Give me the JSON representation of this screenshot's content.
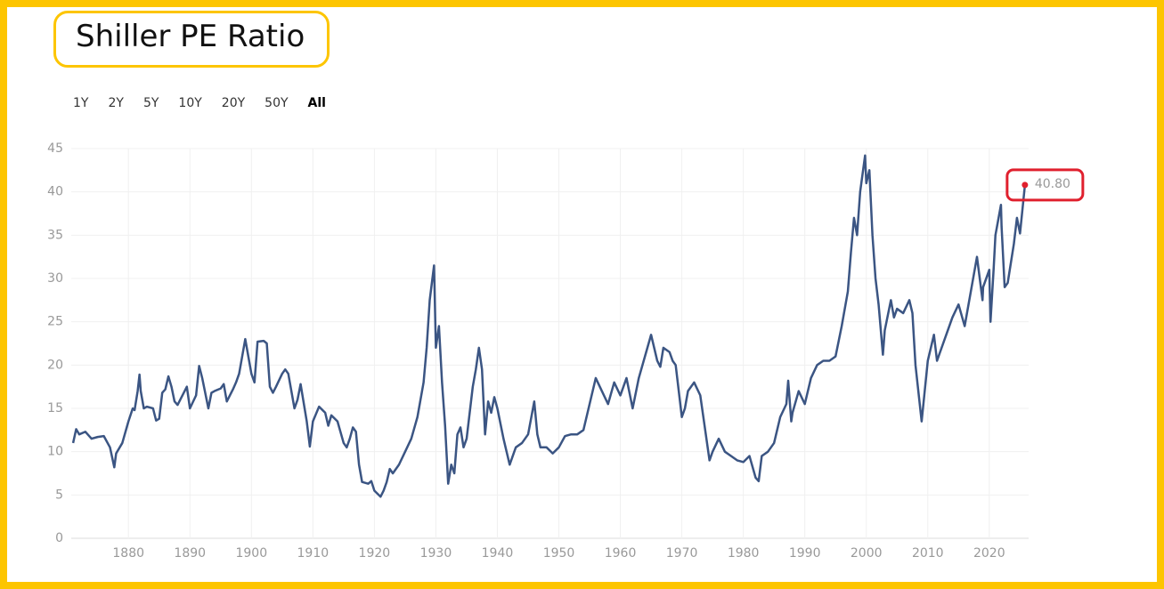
{
  "chart_data": {
    "type": "line",
    "title": "Shiller PE Ratio",
    "range_buttons": [
      "1Y",
      "2Y",
      "5Y",
      "10Y",
      "20Y",
      "50Y",
      "All"
    ],
    "active_range": "All",
    "x": [
      1871,
      1871.5,
      1872,
      1873,
      1874,
      1875,
      1876,
      1877,
      1877.7,
      1878,
      1879,
      1880,
      1880.7,
      1881,
      1881.5,
      1881.8,
      1882,
      1882.5,
      1883,
      1884,
      1884.5,
      1885,
      1885.5,
      1886,
      1886.5,
      1887,
      1887.5,
      1888,
      1889,
      1889.5,
      1890,
      1891,
      1891.5,
      1892,
      1893,
      1893.5,
      1894,
      1895,
      1895.5,
      1896,
      1897,
      1897.5,
      1898,
      1899,
      1899.5,
      1900,
      1900.5,
      1901,
      1902,
      1902.5,
      1903,
      1903.5,
      1904,
      1905,
      1905.5,
      1906,
      1907,
      1907.5,
      1908,
      1909,
      1909.5,
      1910,
      1911,
      1912,
      1912.5,
      1913,
      1914,
      1915,
      1915.5,
      1916,
      1916.5,
      1917,
      1917.5,
      1918,
      1919,
      1919.5,
      1920,
      1921,
      1921.5,
      1922,
      1922.5,
      1923,
      1924,
      1925,
      1926,
      1927,
      1928,
      1928.5,
      1929,
      1929.7,
      1930,
      1930.5,
      1931,
      1931.5,
      1932,
      1932.5,
      1933,
      1933.5,
      1934,
      1934.5,
      1935,
      1936,
      1936.5,
      1937,
      1937.5,
      1938,
      1938.5,
      1939,
      1939.5,
      1940,
      1941,
      1941.5,
      1942,
      1943,
      1944,
      1945,
      1946,
      1946.5,
      1947,
      1948,
      1949,
      1950,
      1951,
      1952,
      1953,
      1954,
      1955,
      1956,
      1957,
      1958,
      1959,
      1960,
      1961,
      1962,
      1963,
      1964,
      1965,
      1966,
      1966.5,
      1967,
      1968,
      1968.5,
      1969,
      1970,
      1970.5,
      1971,
      1972,
      1973,
      1974,
      1974.5,
      1975,
      1976,
      1977,
      1978,
      1979,
      1980,
      1981,
      1982,
      1982.5,
      1983,
      1984,
      1985,
      1986,
      1987,
      1987.3,
      1987.8,
      1988,
      1989,
      1990,
      1991,
      1992,
      1993,
      1994,
      1995,
      1996,
      1997,
      1997.5,
      1998,
      1998.5,
      1999,
      1999.8,
      2000,
      2000.5,
      2001,
      2001.5,
      2002,
      2002.7,
      2003,
      2004,
      2004.5,
      2005,
      2006,
      2007,
      2007.5,
      2008,
      2009,
      2009.5,
      2010,
      2011,
      2011.5,
      2012,
      2013,
      2014,
      2015,
      2016,
      2017,
      2018,
      2018.9,
      2019,
      2020,
      2020.2,
      2020.7,
      2021,
      2021.9,
      2022,
      2022.5,
      2023,
      2024,
      2024.5,
      2025,
      2025.8
    ],
    "values": [
      11.0,
      12.6,
      12.0,
      12.3,
      11.5,
      11.7,
      11.8,
      10.5,
      8.2,
      9.8,
      11.0,
      13.5,
      15.0,
      14.8,
      17.0,
      18.9,
      17.0,
      15.0,
      15.2,
      15.0,
      13.6,
      13.8,
      16.8,
      17.2,
      18.7,
      17.5,
      15.8,
      15.4,
      16.8,
      17.5,
      15.0,
      16.5,
      19.9,
      18.5,
      15.0,
      16.8,
      17.0,
      17.3,
      17.8,
      15.8,
      17.2,
      18.0,
      19.0,
      23.0,
      21.0,
      19.0,
      18.0,
      22.7,
      22.8,
      22.5,
      17.5,
      16.8,
      17.5,
      19.0,
      19.5,
      19.0,
      15.0,
      16.0,
      17.8,
      13.5,
      10.6,
      13.5,
      15.2,
      14.5,
      13.0,
      14.2,
      13.5,
      11.0,
      10.5,
      11.5,
      12.8,
      12.3,
      8.5,
      6.5,
      6.3,
      6.6,
      5.5,
      4.8,
      5.5,
      6.5,
      8.0,
      7.5,
      8.5,
      10.0,
      11.5,
      14.0,
      18.0,
      22.0,
      27.5,
      31.5,
      22.0,
      24.5,
      18.0,
      13.0,
      6.3,
      8.5,
      7.5,
      12.0,
      12.8,
      10.5,
      11.5,
      17.5,
      19.5,
      22.0,
      19.5,
      12.0,
      15.8,
      14.5,
      16.3,
      15.0,
      11.5,
      10.0,
      8.5,
      10.5,
      11.0,
      12.0,
      15.8,
      12.0,
      10.5,
      10.5,
      9.8,
      10.5,
      11.8,
      12.0,
      12.0,
      12.5,
      15.5,
      18.5,
      17.0,
      15.5,
      18.0,
      16.5,
      18.5,
      15.0,
      18.5,
      21.0,
      23.5,
      20.5,
      19.8,
      22.0,
      21.5,
      20.5,
      20.0,
      14.0,
      15.0,
      17.0,
      18.0,
      16.5,
      11.5,
      9.0,
      10.0,
      11.5,
      10.0,
      9.5,
      9.0,
      8.8,
      9.5,
      7.0,
      6.6,
      9.5,
      10.0,
      11.0,
      14.0,
      15.5,
      18.2,
      13.5,
      14.5,
      17.0,
      15.5,
      18.5,
      20.0,
      20.5,
      20.5,
      21.0,
      24.5,
      28.5,
      33.0,
      37.0,
      35.0,
      40.0,
      44.2,
      41.0,
      42.5,
      35.0,
      30.0,
      27.0,
      21.2,
      24.0,
      27.5,
      25.5,
      26.5,
      26.0,
      27.5,
      26.0,
      20.0,
      13.5,
      17.0,
      20.5,
      23.5,
      20.5,
      21.5,
      23.5,
      25.5,
      27.0,
      24.5,
      28.5,
      32.5,
      27.5,
      29.0,
      31.0,
      25.0,
      31.0,
      35.0,
      38.5,
      36.0,
      29.0,
      29.5,
      34.0,
      37.0,
      35.2,
      40.8
    ],
    "last_value_label": "40.80",
    "color": "#3b5583",
    "highlight_color": "#e0202e",
    "xlim": [
      1870.7,
      2026.4
    ],
    "xticks": [
      1880,
      1890,
      1900,
      1910,
      1920,
      1930,
      1940,
      1950,
      1960,
      1970,
      1980,
      1990,
      2000,
      2010,
      2020
    ],
    "ylim": [
      0,
      45
    ],
    "yticks": [
      0,
      5,
      10,
      15,
      20,
      25,
      30,
      35,
      40,
      45
    ],
    "grid": true
  }
}
